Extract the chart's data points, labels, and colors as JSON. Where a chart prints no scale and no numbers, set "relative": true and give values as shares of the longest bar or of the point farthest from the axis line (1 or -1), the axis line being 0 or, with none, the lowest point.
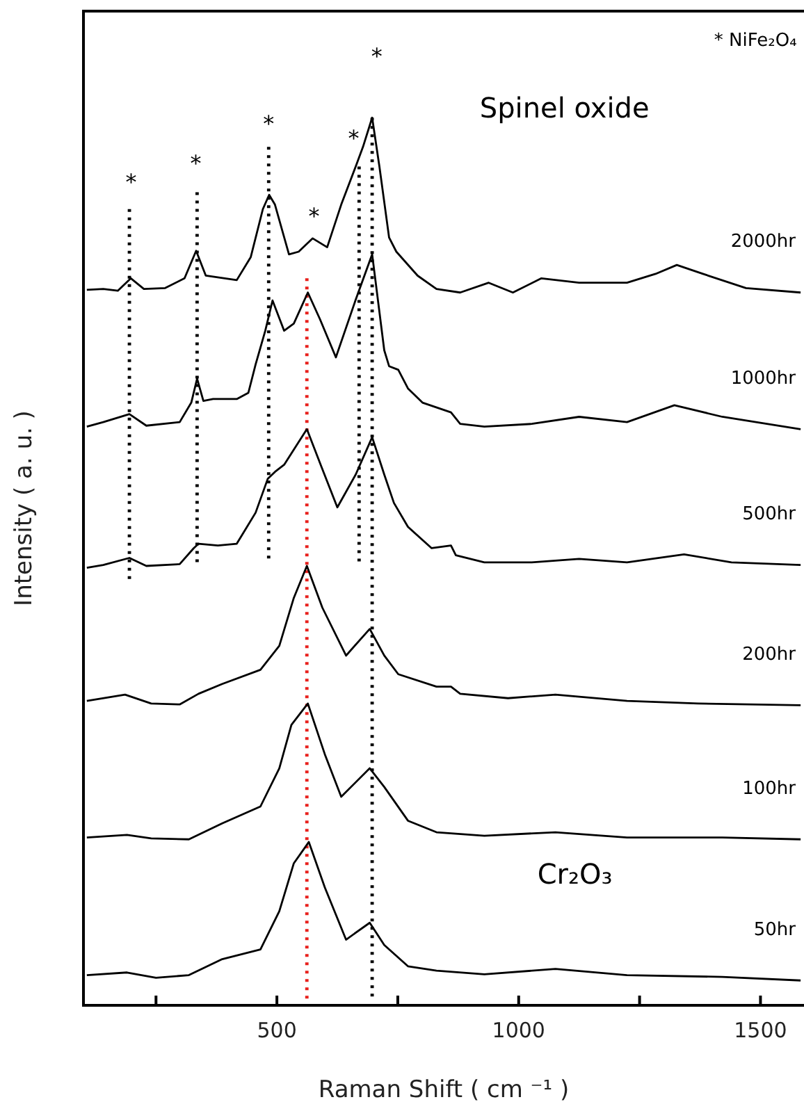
{
  "chart_data": {
    "type": "line",
    "relative": true,
    "xlabel": "Raman Shift ( cm ⁻¹ )",
    "ylabel": "Intensity ( a. u. )",
    "xlim": [
      100,
      1590
    ],
    "xticks": [
      {
        "value": 250,
        "label": null
      },
      500,
      {
        "value": 750,
        "label": null
      },
      1000,
      {
        "value": 1250,
        "label": null
      },
      1500
    ],
    "tick_labels": "x",
    "grid": false,
    "legend": false,
    "marker": "none",
    "line_style": "solid",
    "annotations": [
      "* NiFe₂O₄",
      "Spinel oxide",
      "Cr₂O₃",
      "*",
      "*",
      "*",
      "*",
      "*",
      "*"
    ],
    "series": [
      {
        "name": "2000hr",
        "color": "#000000",
        "x": [
          107,
          141,
          171,
          198,
          225,
          269,
          309,
          333,
          353,
          417,
          446,
          471,
          484,
          496,
          525,
          545,
          574,
          604,
          633,
          663,
          678,
          697,
          712,
          732,
          747,
          791,
          830,
          879,
          938,
          988,
          1047,
          1125,
          1224,
          1283,
          1327,
          1381,
          1470,
          1583
        ],
        "values": [
          0.806,
          0.807,
          0.805,
          0.819,
          0.807,
          0.808,
          0.819,
          0.85,
          0.822,
          0.817,
          0.843,
          0.897,
          0.913,
          0.902,
          0.846,
          0.849,
          0.864,
          0.854,
          0.902,
          0.945,
          0.967,
          1.0,
          0.945,
          0.865,
          0.849,
          0.822,
          0.807,
          0.803,
          0.814,
          0.803,
          0.819,
          0.814,
          0.814,
          0.824,
          0.834,
          0.824,
          0.808,
          0.803
        ]
      },
      {
        "name": "1000hr",
        "color": "#000000",
        "x": [
          107,
          141,
          195,
          230,
          299,
          323,
          335,
          348,
          368,
          417,
          441,
          456,
          476,
          491,
          515,
          535,
          564,
          589,
          622,
          663,
          697,
          722,
          732,
          751,
          771,
          801,
          860,
          879,
          929,
          1027,
          1125,
          1224,
          1322,
          1421,
          1583
        ],
        "values": [
          0.652,
          0.657,
          0.666,
          0.653,
          0.657,
          0.679,
          0.706,
          0.681,
          0.683,
          0.683,
          0.69,
          0.722,
          0.76,
          0.794,
          0.76,
          0.768,
          0.803,
          0.773,
          0.73,
          0.795,
          0.846,
          0.738,
          0.72,
          0.716,
          0.695,
          0.679,
          0.668,
          0.655,
          0.652,
          0.655,
          0.663,
          0.657,
          0.676,
          0.663,
          0.649
        ]
      },
      {
        "name": "500hr",
        "color": "#000000",
        "x": [
          107,
          141,
          195,
          230,
          299,
          328,
          338,
          378,
          417,
          456,
          481,
          496,
          515,
          562,
          594,
          625,
          663,
          697,
          722,
          742,
          771,
          820,
          860,
          870,
          929,
          1027,
          1125,
          1224,
          1342,
          1440,
          1583
        ],
        "values": [
          0.493,
          0.496,
          0.504,
          0.495,
          0.497,
          0.515,
          0.52,
          0.518,
          0.52,
          0.555,
          0.593,
          0.601,
          0.609,
          0.649,
          0.604,
          0.561,
          0.598,
          0.64,
          0.598,
          0.566,
          0.539,
          0.515,
          0.518,
          0.507,
          0.499,
          0.499,
          0.503,
          0.499,
          0.508,
          0.499,
          0.496
        ]
      },
      {
        "name": "200hr",
        "color": "#000000",
        "x": [
          107,
          186,
          240,
          299,
          338,
          387,
          466,
          505,
          535,
          562,
          594,
          643,
          692,
          722,
          751,
          830,
          860,
          879,
          978,
          1076,
          1224,
          1371,
          1583
        ],
        "values": [
          0.343,
          0.35,
          0.34,
          0.339,
          0.351,
          0.362,
          0.378,
          0.405,
          0.459,
          0.495,
          0.448,
          0.394,
          0.424,
          0.394,
          0.373,
          0.359,
          0.359,
          0.351,
          0.346,
          0.35,
          0.343,
          0.34,
          0.338
        ]
      },
      {
        "name": "100hr",
        "color": "#000000",
        "x": [
          107,
          190,
          240,
          318,
          387,
          466,
          505,
          530,
          564,
          599,
          633,
          692,
          722,
          771,
          830,
          929,
          1076,
          1224,
          1421,
          1583
        ],
        "values": [
          0.189,
          0.192,
          0.188,
          0.187,
          0.205,
          0.224,
          0.267,
          0.316,
          0.34,
          0.283,
          0.235,
          0.267,
          0.246,
          0.208,
          0.195,
          0.191,
          0.195,
          0.189,
          0.189,
          0.187
        ]
      },
      {
        "name": "50hr",
        "color": "#000000",
        "x": [
          107,
          190,
          250,
          318,
          387,
          466,
          505,
          535,
          566,
          599,
          643,
          692,
          722,
          771,
          830,
          929,
          1076,
          1224,
          1421,
          1583
        ],
        "values": [
          0.034,
          0.037,
          0.031,
          0.034,
          0.052,
          0.063,
          0.106,
          0.16,
          0.184,
          0.133,
          0.074,
          0.093,
          0.068,
          0.044,
          0.039,
          0.035,
          0.041,
          0.034,
          0.032,
          0.028
        ]
      },
      {
        "color": "#000000",
        "line_style": "dotted",
        "x": [
          195,
          195
        ],
        "values": [
          0.897,
          0.477
        ]
      },
      {
        "color": "#000000",
        "line_style": "dotted",
        "x": [
          335,
          335
        ],
        "values": [
          0.916,
          0.496
        ]
      },
      {
        "color": "#000000",
        "line_style": "dotted",
        "x": [
          483,
          483
        ],
        "values": [
          0.967,
          0.501
        ]
      },
      {
        "color": "#000000",
        "line_style": "dotted",
        "x": [
          670,
          670
        ],
        "values": [
          0.945,
          0.496
        ]
      },
      {
        "color": "#000000",
        "line_style": "dotted",
        "x": [
          697,
          697
        ],
        "values": [
          1.0,
          0.004
        ]
      },
      {
        "color": "#e8201c",
        "line_style": "dotted",
        "x": [
          562,
          562
        ],
        "values": [
          0.819,
          0.007
        ]
      }
    ]
  }
}
